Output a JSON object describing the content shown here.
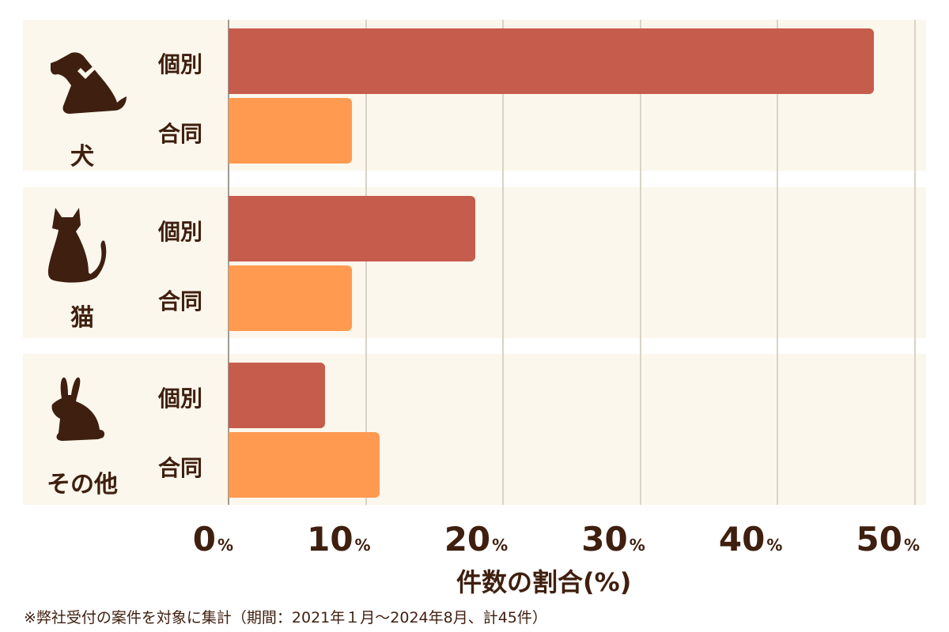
{
  "chart_data": {
    "type": "bar",
    "orientation": "horizontal",
    "title": "",
    "xlabel": "件数の割合(%)",
    "ylabel": "",
    "xlim": [
      0,
      50
    ],
    "x_ticks": [
      "0",
      "10",
      "20",
      "30",
      "40",
      "50"
    ],
    "x_tick_suffix": "%",
    "grid": true,
    "categories": [
      "犬",
      "猫",
      "その他"
    ],
    "series": [
      {
        "name": "個別",
        "color": "#c65c4c",
        "values": [
          47,
          18,
          7
        ]
      },
      {
        "name": "合同",
        "color": "#ff9a50",
        "values": [
          9,
          9,
          11
        ]
      }
    ],
    "note": "※弊社受付の案件を対象に集計（期間：2021年１月～2024年8月、計45件）"
  },
  "groups": [
    {
      "label": "犬",
      "icon": "dog-icon",
      "rows": [
        {
          "label": "個別",
          "value": 47
        },
        {
          "label": "合同",
          "value": 9
        }
      ]
    },
    {
      "label": "猫",
      "icon": "cat-icon",
      "rows": [
        {
          "label": "個別",
          "value": 18
        },
        {
          "label": "合同",
          "value": 9
        }
      ]
    },
    {
      "label": "その他",
      "icon": "rabbit-icon",
      "rows": [
        {
          "label": "個別",
          "value": 7
        },
        {
          "label": "合同",
          "value": 11
        }
      ]
    }
  ],
  "axis": {
    "ticks": [
      {
        "num": "0",
        "pct": "%"
      },
      {
        "num": "10",
        "pct": "%"
      },
      {
        "num": "20",
        "pct": "%"
      },
      {
        "num": "30",
        "pct": "%"
      },
      {
        "num": "40",
        "pct": "%"
      },
      {
        "num": "50",
        "pct": "%"
      }
    ],
    "title": "件数の割合(%)"
  },
  "colors": {
    "individual": "#c65c4c",
    "joint": "#ff9a50",
    "panel": "#fcf7ec",
    "text": "#3f1f0f"
  },
  "note": "※弊社受付の案件を対象に集計（期間：2021年１月～2024年8月、計45件）"
}
